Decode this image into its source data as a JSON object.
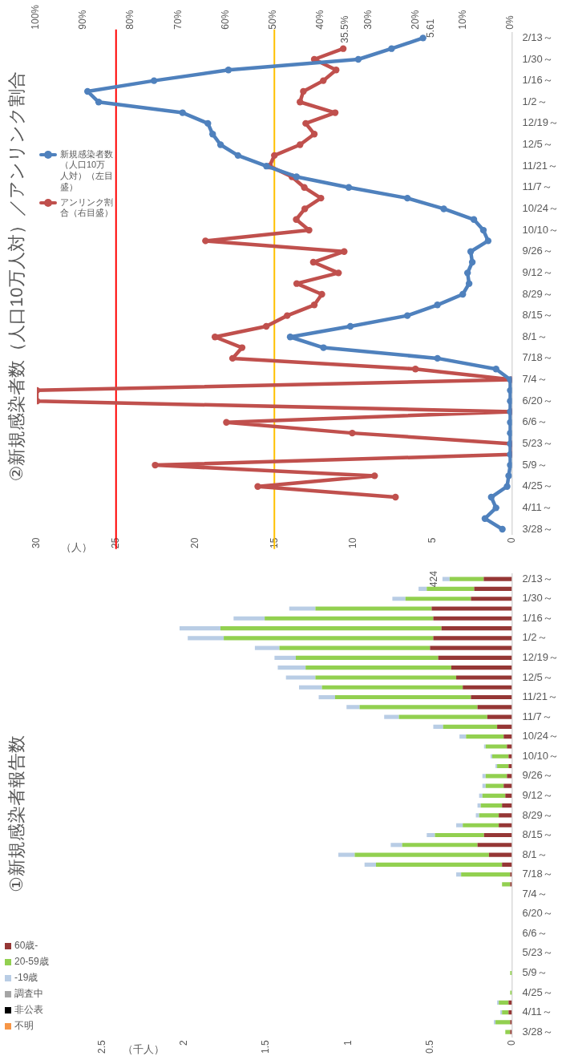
{
  "chart_data": [
    {
      "type": "line",
      "orientation": "horizontal",
      "title": "②新規感染者数（人口10万人対）／アンリンク割合",
      "xlabel": "（人）",
      "categories": [
        "2/13～",
        null,
        "1/30～",
        null,
        "1/16～",
        null,
        "1/2～",
        null,
        "12/19～",
        null,
        "12/5～",
        null,
        "11/21～",
        null,
        "11/7～",
        null,
        "10/24～",
        null,
        "10/10～",
        null,
        "9/26～",
        null,
        "9/12～",
        null,
        "8/29～",
        null,
        "8/15～",
        null,
        "8/1～",
        null,
        "7/18～",
        null,
        "7/4～",
        null,
        "6/20～",
        null,
        "6/6～",
        null,
        "5/23～",
        null,
        "5/9～",
        null,
        "4/25～",
        null,
        "4/11～",
        null,
        "3/28～"
      ],
      "series": [
        {
          "name": "新規感染者数（人口10万人対）（左目盛）",
          "color": "#4f81bd",
          "values": [
            5.61,
            7.6,
            9.7,
            17.9,
            22.6,
            26.8,
            26.1,
            20.8,
            19.2,
            18.9,
            18.4,
            17.3,
            15.5,
            13.6,
            10.3,
            6.6,
            4.3,
            2.4,
            1.8,
            1.5,
            2.6,
            2.5,
            2.8,
            2.7,
            3.1,
            4.7,
            6.6,
            10.2,
            14.0,
            11.9,
            4.7,
            1.0,
            0.1,
            0.1,
            0.1,
            0.1,
            0.1,
            0.1,
            0.1,
            0.1,
            0.1,
            0.2,
            0.3,
            1.3,
            1.0,
            1.7,
            0.6
          ],
          "value_labels": [
            "5.61",
            null,
            null,
            null,
            null,
            null,
            null,
            null,
            null,
            null,
            null,
            null,
            null,
            null,
            null,
            null,
            null,
            null,
            null,
            null,
            null,
            null,
            null,
            null,
            null,
            null,
            null,
            null,
            null,
            null,
            null,
            null,
            null,
            null,
            null,
            null,
            null,
            null,
            null,
            null,
            null,
            null,
            null,
            null,
            null,
            null,
            null
          ]
        },
        {
          "name": "アンリンク割合（右目盛）",
          "color": "#c0504d",
          "axis": "x2",
          "values": [
            null,
            35.5,
            41.6,
            37.0,
            39.7,
            43.9,
            44.6,
            37.2,
            43.4,
            41.6,
            44.6,
            50.0,
            51.0,
            46.3,
            43.7,
            40.2,
            43.6,
            45.4,
            42.7,
            64.5,
            35.3,
            41.8,
            36.5,
            45.3,
            40.0,
            41.6,
            47.3,
            51.7,
            62.5,
            56.8,
            58.8,
            20.3,
            0,
            100,
            100,
            0,
            60.1,
            33.6,
            0,
            0,
            75.1,
            28.9,
            53.5,
            24.5,
            null,
            null,
            null
          ],
          "value_labels": [
            null,
            "35.5%",
            null,
            null,
            null,
            null,
            null,
            null,
            null,
            null,
            null,
            null,
            null,
            null,
            null,
            null,
            null,
            null,
            null,
            null,
            null,
            null,
            null,
            null,
            null,
            null,
            null,
            null,
            null,
            null,
            null,
            null,
            null,
            null,
            null,
            null,
            null,
            null,
            null,
            null,
            null,
            null,
            null,
            null,
            null,
            null,
            null
          ]
        }
      ],
      "xlim": [
        30,
        0
      ],
      "xticks": [
        30,
        25,
        20,
        15,
        10,
        5,
        0
      ],
      "x2lim": [
        100,
        0
      ],
      "x2ticks": [
        {
          "value": 100,
          "label": "100%"
        },
        {
          "value": 90,
          "label": "90%"
        },
        {
          "value": 80,
          "label": "80%"
        },
        {
          "value": 70,
          "label": "70%"
        },
        {
          "value": 60,
          "label": "60%"
        },
        {
          "value": 50,
          "label": "50%"
        },
        {
          "value": 40,
          "label": "40%"
        },
        {
          "value": 30,
          "label": "30%"
        },
        {
          "value": 20,
          "label": "20%"
        },
        {
          "value": 10,
          "label": "10%"
        },
        {
          "value": 0,
          "label": "0%"
        }
      ],
      "ref_lines": [
        {
          "axis": "x",
          "value": 25,
          "color": "#ff0000"
        },
        {
          "axis": "x",
          "value": 15,
          "color": "#ffc000"
        }
      ],
      "marker": "circle",
      "legend": "left"
    },
    {
      "type": "bar",
      "orientation": "horizontal",
      "stacked": true,
      "title": "①新規感染者報告数",
      "xlabel": "（千人）",
      "categories": [
        "2/13～",
        null,
        "1/30～",
        null,
        "1/16～",
        null,
        "1/2～",
        null,
        "12/19～",
        null,
        "12/5～",
        null,
        "11/21～",
        null,
        "11/7～",
        null,
        "10/24～",
        null,
        "10/10～",
        null,
        "9/26～",
        null,
        "9/12～",
        null,
        "8/29～",
        null,
        "8/15～",
        null,
        "8/1～",
        null,
        "7/18～",
        null,
        "7/4～",
        null,
        "6/20～",
        null,
        "6/6～",
        null,
        "5/23～",
        null,
        "5/9～",
        null,
        "4/25～",
        null,
        "4/11～",
        null,
        "3/28～"
      ],
      "series": [
        {
          "name": "60歳-",
          "color": "#953735",
          "values": [
            0.172,
            0.23,
            0.25,
            0.49,
            0.48,
            0.43,
            0.48,
            0.5,
            0.45,
            0.37,
            0.34,
            0.3,
            0.25,
            0.21,
            0.15,
            0.09,
            0.05,
            0.03,
            0.02,
            0.02,
            0.03,
            0.05,
            0.04,
            0.06,
            0.08,
            0.08,
            0.17,
            0.21,
            0.14,
            0.06,
            0.01,
            0.01,
            0,
            0,
            0,
            0,
            0,
            0,
            0,
            0,
            0,
            0,
            0,
            0.02,
            0.02,
            0.01,
            0.01
          ]
        },
        {
          "name": "20-59歳",
          "color": "#92d050",
          "values": [
            0.208,
            0.29,
            0.4,
            0.71,
            1.03,
            1.35,
            1.28,
            0.92,
            0.87,
            0.89,
            0.86,
            0.86,
            0.83,
            0.72,
            0.54,
            0.33,
            0.23,
            0.13,
            0.1,
            0.07,
            0.13,
            0.11,
            0.14,
            0.13,
            0.12,
            0.22,
            0.3,
            0.46,
            0.82,
            0.77,
            0.3,
            0.05,
            0,
            0,
            0,
            0,
            0,
            0,
            0,
            0,
            0.01,
            0,
            0.01,
            0.06,
            0.04,
            0.09,
            0.03
          ]
        },
        {
          "name": "-19歳",
          "color": "#b9cde5",
          "values": [
            0.044,
            0.05,
            0.08,
            0.16,
            0.19,
            0.25,
            0.22,
            0.15,
            0.13,
            0.17,
            0.18,
            0.14,
            0.1,
            0.08,
            0.09,
            0.06,
            0.04,
            0.01,
            0.01,
            0.01,
            0.02,
            0.02,
            0.02,
            0.02,
            0.02,
            0.04,
            0.05,
            0.07,
            0.1,
            0.07,
            0.03,
            0,
            0,
            0,
            0,
            0,
            0,
            0,
            0,
            0,
            0,
            0,
            0,
            0.01,
            0.01,
            0.01,
            0
          ]
        },
        {
          "name": "調査中",
          "color": "#a5a5a5",
          "values": [
            0,
            0,
            0,
            0,
            0,
            0,
            0,
            0,
            0,
            0,
            0,
            0,
            0,
            0,
            0,
            0,
            0,
            0,
            0,
            0,
            0,
            0,
            0,
            0,
            0,
            0,
            0,
            0,
            0,
            0,
            0,
            0,
            0,
            0,
            0,
            0,
            0,
            0,
            0,
            0,
            0,
            0,
            0,
            0,
            0,
            0,
            0
          ]
        },
        {
          "name": "非公表",
          "color": "#000000",
          "values": [
            0,
            0,
            0,
            0,
            0,
            0,
            0,
            0,
            0,
            0,
            0,
            0,
            0,
            0,
            0,
            0,
            0,
            0,
            0,
            0,
            0,
            0,
            0,
            0,
            0,
            0,
            0,
            0,
            0,
            0,
            0,
            0,
            0,
            0,
            0,
            0,
            0,
            0,
            0,
            0,
            0,
            0,
            0,
            0,
            0,
            0,
            0
          ]
        },
        {
          "name": "不明",
          "color": "#f79646",
          "values": [
            0,
            0,
            0,
            0,
            0,
            0,
            0,
            0,
            0,
            0,
            0,
            0,
            0,
            0,
            0,
            0,
            0,
            0,
            0,
            0,
            0,
            0,
            0,
            0,
            0,
            0,
            0,
            0,
            0,
            0,
            0,
            0,
            0,
            0,
            0,
            0,
            0,
            0,
            0,
            0,
            0,
            0,
            0,
            0,
            0,
            0,
            0
          ]
        }
      ],
      "totals": [
        "424",
        null,
        null,
        null,
        null,
        null,
        null,
        null,
        null,
        null,
        null,
        null,
        null,
        null,
        null,
        null,
        null,
        null,
        null,
        null,
        null,
        null,
        null,
        null,
        null,
        null,
        null,
        null,
        null,
        null,
        null,
        null,
        null,
        null,
        null,
        null,
        null,
        null,
        null,
        null,
        null,
        null,
        null,
        null,
        null,
        null,
        null
      ],
      "xlim": [
        2.5,
        0
      ],
      "xticks": [
        2.5,
        2,
        1.5,
        1,
        0.5,
        0
      ],
      "legend": "bottom left"
    }
  ]
}
